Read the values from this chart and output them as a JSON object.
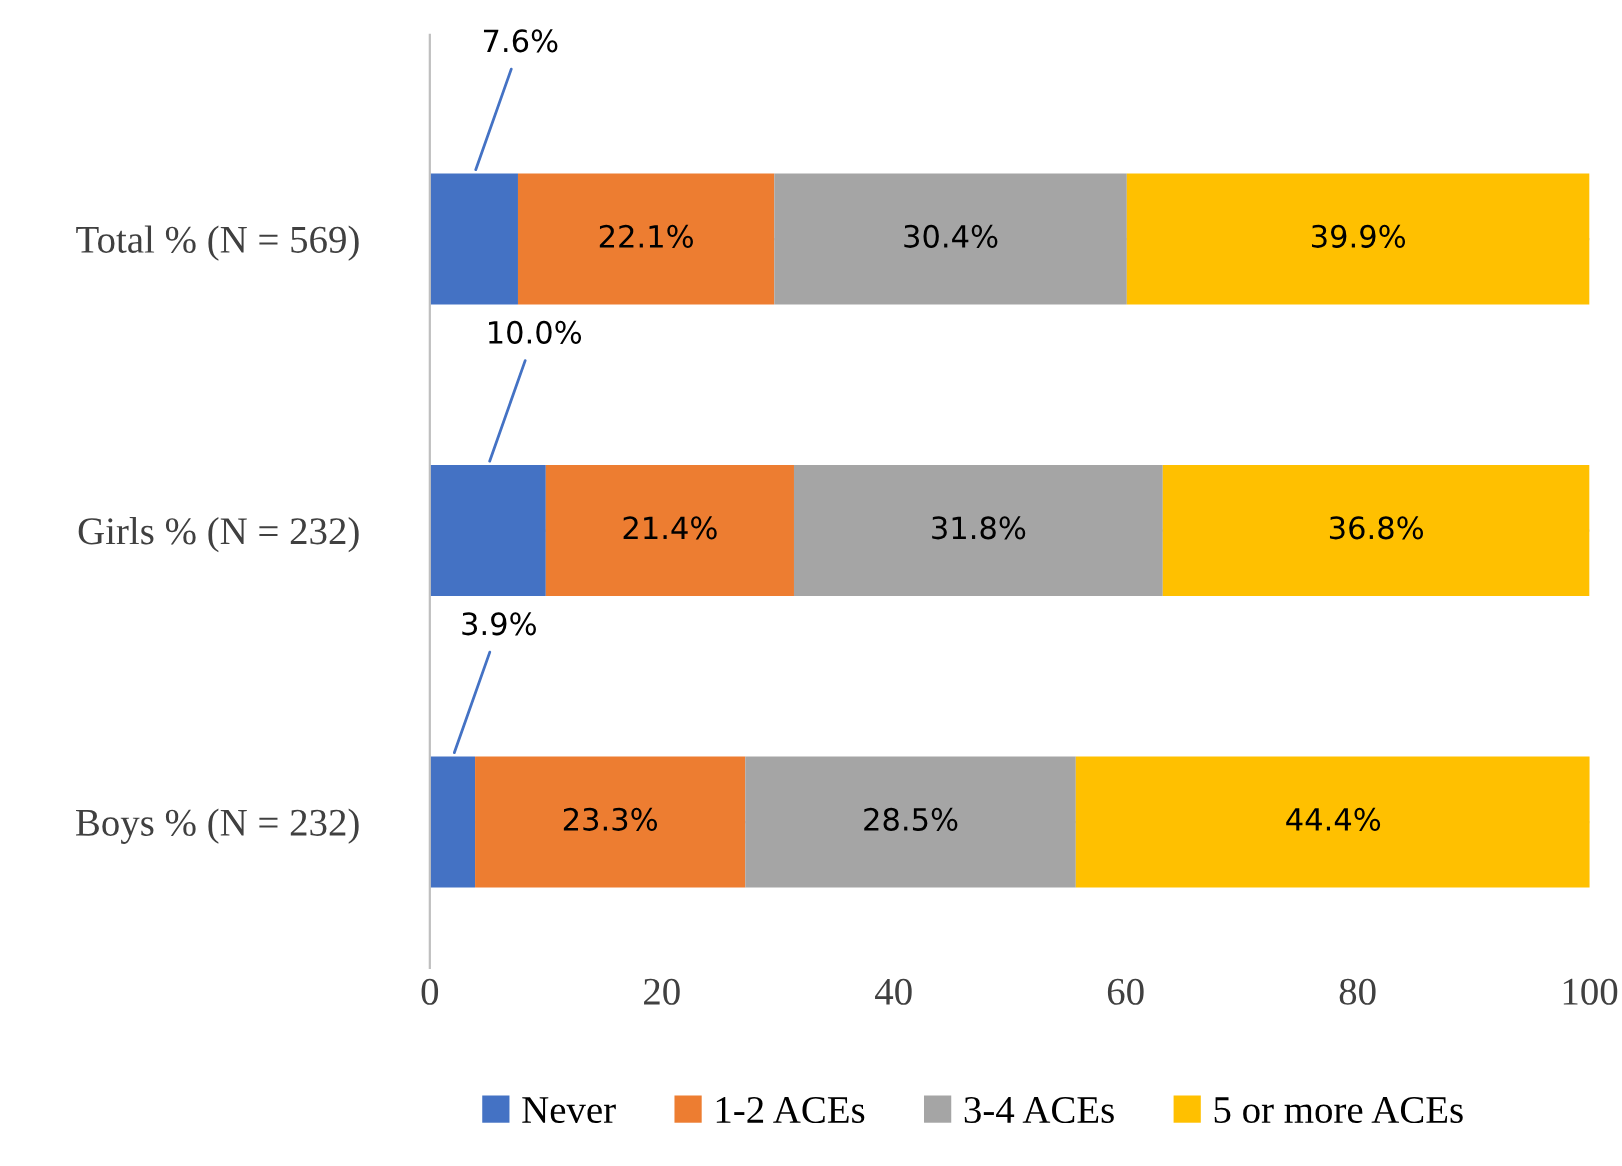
{
  "chart_data": {
    "type": "bar",
    "orientation": "horizontal",
    "stacked": true,
    "categories": [
      "Total % (N = 569)",
      "Girls % (N = 232)",
      "Boys % (N = 232)"
    ],
    "series": [
      {
        "name": "Never",
        "color": "#4472c4",
        "values": [
          7.6,
          10.0,
          3.9
        ],
        "value_labels": [
          "7.6%",
          "10.0%",
          "3.9%"
        ]
      },
      {
        "name": "1-2 ACEs",
        "color": "#ed7d31",
        "values": [
          22.1,
          21.4,
          23.3
        ],
        "value_labels": [
          "22.1%",
          "21.4%",
          "23.3%"
        ]
      },
      {
        "name": "3-4 ACEs",
        "color": "#a5a5a5",
        "values": [
          30.4,
          31.8,
          28.5
        ],
        "value_labels": [
          "30.4%",
          "31.8%",
          "28.5%"
        ]
      },
      {
        "name": "5 or more ACEs",
        "color": "#ffc000",
        "values": [
          39.9,
          36.8,
          44.4
        ],
        "value_labels": [
          "39.9%",
          "36.8%",
          "44.4%"
        ]
      }
    ],
    "xlim": [
      0,
      100
    ],
    "xticks": [
      0,
      20,
      40,
      60,
      80,
      100
    ],
    "grid": false,
    "legend": "bottom"
  }
}
